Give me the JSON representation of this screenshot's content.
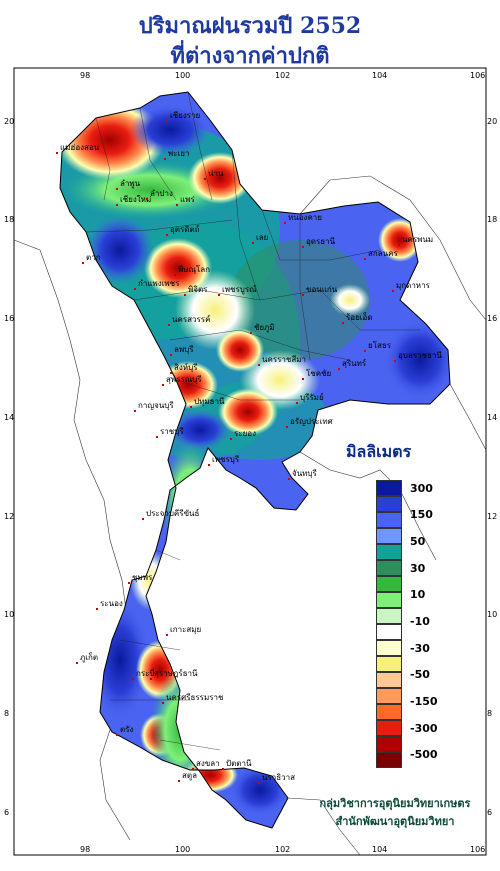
{
  "title_line1": "ปริมาณฝนรวมปี  2552",
  "title_line2": "ที่ต่างจากค่าปกติ",
  "legend": {
    "unit": "มิลลิเมตร",
    "labels": [
      "300",
      "150",
      "50",
      "30",
      "10",
      "-10",
      "-30",
      "-50",
      "-150",
      "-300",
      "-500"
    ],
    "colors": [
      "#0a1a9e",
      "#2a3fd6",
      "#4a63f0",
      "#6f96ff",
      "#12a29a",
      "#2f8e5c",
      "#35b83d",
      "#7ff07a",
      "#c8f5c2",
      "#ffffff",
      "#ffffd0",
      "#f7f07a",
      "#ffc895",
      "#ff9a5a",
      "#ff6a2a",
      "#e81d10",
      "#b00000",
      "#7a0000"
    ]
  },
  "axes": {
    "lon_ticks": [
      "98",
      "100",
      "102",
      "104",
      "106"
    ],
    "lat_ticks": [
      "20",
      "18",
      "16",
      "14",
      "12",
      "10",
      "8",
      "6"
    ]
  },
  "places": [
    {
      "name": "เชียงราย"
    },
    {
      "name": "เชียงใหม่"
    },
    {
      "name": "พะเยา"
    },
    {
      "name": "น่าน"
    },
    {
      "name": "ลำพูน"
    },
    {
      "name": "ลำปาง"
    },
    {
      "name": "แม่ฮ่องสอน"
    },
    {
      "name": "แพร่"
    },
    {
      "name": "อุตรดิตถ์"
    },
    {
      "name": "ตาก"
    },
    {
      "name": "หนองคาย"
    },
    {
      "name": "อุดรธานี"
    },
    {
      "name": "นครพนม"
    },
    {
      "name": "สกลนคร"
    },
    {
      "name": "เลย"
    },
    {
      "name": "พิษณุโลก"
    },
    {
      "name": "มุกดาหาร"
    },
    {
      "name": "กำแพงเพชร"
    },
    {
      "name": "พิจิตร"
    },
    {
      "name": "เพชรบูรณ์"
    },
    {
      "name": "ขอนแก่น"
    },
    {
      "name": "นครสวรรค์"
    },
    {
      "name": "ชัยภูมิ"
    },
    {
      "name": "ร้อยเอ็ด"
    },
    {
      "name": "อุบลราชธานี"
    },
    {
      "name": "ยโสธร"
    },
    {
      "name": "ลพบุรี"
    },
    {
      "name": "นครราชสีมา"
    },
    {
      "name": "สุรินทร์"
    },
    {
      "name": "สิงห์บุรี"
    },
    {
      "name": "สุพรรณบุรี"
    },
    {
      "name": "ปทุมธานี"
    },
    {
      "name": "โชคชัย"
    },
    {
      "name": "บุรีรัมย์"
    },
    {
      "name": "กาญจนบุรี"
    },
    {
      "name": "อรัญประเทศ"
    },
    {
      "name": "ราชบุรี"
    },
    {
      "name": "ระยอง"
    },
    {
      "name": "เพชรบุรี"
    },
    {
      "name": "จันทบุรี"
    },
    {
      "name": "ประจวบคีรีขันธ์"
    },
    {
      "name": "ชุมพร"
    },
    {
      "name": "ระนอง"
    },
    {
      "name": "เกาะสมุย"
    },
    {
      "name": "สุราษฎร์ธานี"
    },
    {
      "name": "ภูเก็ต"
    },
    {
      "name": "กระบี่"
    },
    {
      "name": "นครศรีธรรมราช"
    },
    {
      "name": "ตรัง"
    },
    {
      "name": "สงขลา"
    },
    {
      "name": "ปัตตานี"
    },
    {
      "name": "นราธิวาส"
    },
    {
      "name": "สตูล"
    }
  ],
  "credit_line1": "กลุ่มวิชาการอุตุนิยมวิทยาเกษตร",
  "credit_line2": "สำนักพัฒนาอุตุนิยมวิทยา"
}
